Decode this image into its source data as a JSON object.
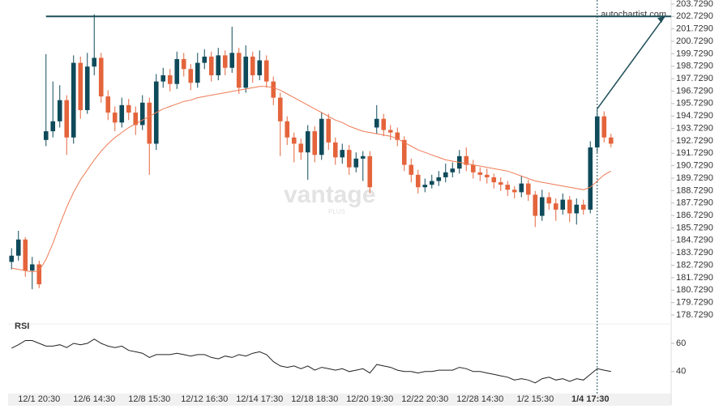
{
  "chart_data": {
    "type": "candlestick",
    "annotation": "autochartist.com",
    "watermark": "vantage",
    "watermark_sub": "PLUS",
    "indicator_label": "RSI",
    "up_color": "#0f4a5a",
    "down_color": "#e4643c",
    "ma_color": "#ef7a55",
    "rsi_color": "#222222",
    "resistance_color": "#1f4f5a",
    "resistance": 202.73,
    "categories": [
      null,
      null,
      null,
      null,
      "12/1 20:30",
      null,
      null,
      null,
      null,
      null,
      null,
      null,
      "12/6 14:30",
      null,
      null,
      null,
      null,
      null,
      null,
      null,
      "12/8 15:30",
      null,
      null,
      null,
      null,
      null,
      null,
      null,
      "12/12 16:30",
      null,
      null,
      null,
      null,
      null,
      null,
      null,
      "12/14 17:30",
      null,
      null,
      null,
      null,
      null,
      null,
      null,
      "12/18 18:30",
      null,
      null,
      null,
      null,
      null,
      null,
      null,
      "12/20 19:30",
      null,
      null,
      null,
      null,
      null,
      null,
      null,
      "12/22 20:30",
      null,
      null,
      null,
      null,
      null,
      null,
      null,
      "12/28 14:30",
      null,
      null,
      null,
      null,
      null,
      null,
      null,
      "1/2 15:30",
      null,
      null,
      null,
      null,
      null,
      null,
      null,
      "1/4 17:30",
      null,
      null,
      null
    ],
    "open": [
      183.0,
      183.5,
      184.8,
      182.3,
      182.8,
      192.8,
      193.5,
      194.3,
      196.0,
      193.0,
      199.0,
      195.2,
      198.7,
      199.4,
      196.3,
      195.0,
      194.2,
      195.6,
      195.0,
      194.0,
      195.8,
      192.5,
      197.5,
      198.0,
      197.3,
      199.3,
      198.5,
      197.4,
      199.0,
      199.5,
      198.0,
      199.6,
      198.6,
      199.8,
      197.0,
      199.5,
      198.0,
      199.2,
      197.5,
      196.2,
      194.3,
      193.0,
      192.5,
      191.8,
      193.5,
      191.6,
      194.5,
      192.6,
      191.4,
      192.0,
      190.6,
      191.3,
      191.5,
      193.8,
      194.5,
      193.6,
      193.4,
      192.8,
      190.8,
      190.0,
      189.0,
      189.2,
      189.5,
      189.8,
      190.2,
      190.5,
      191.5,
      190.8,
      190.2,
      190.0,
      189.8,
      189.4,
      189.2,
      188.8,
      188.6,
      189.3,
      188.4,
      186.7,
      188.2,
      187.7,
      187.2,
      188.0,
      186.9,
      187.6,
      187.2,
      192.2,
      194.7,
      193.0
    ],
    "high": [
      184.1,
      185.5,
      185.0,
      183.4,
      183.1,
      199.7,
      197.5,
      197.2,
      196.4,
      199.6,
      199.5,
      199.8,
      202.9,
      199.8,
      196.8,
      195.5,
      196.2,
      196.1,
      195.5,
      196.4,
      196.2,
      198.1,
      198.6,
      198.5,
      199.9,
      199.8,
      198.9,
      199.8,
      200.1,
      199.9,
      200.2,
      200.0,
      201.9,
      200.2,
      200.4,
      199.9,
      200.0,
      199.6,
      197.9,
      196.6,
      194.7,
      193.4,
      192.9,
      194.0,
      193.9,
      195.0,
      194.9,
      193.0,
      192.5,
      192.4,
      191.8,
      191.9,
      191.9,
      195.6,
      194.9,
      194.0,
      193.8,
      193.1,
      191.3,
      190.4,
      189.7,
      190.0,
      190.3,
      190.9,
      191.0,
      192.0,
      192.2,
      191.2,
      190.6,
      190.5,
      190.1,
      189.8,
      189.5,
      189.1,
      189.9,
      189.6,
      188.7,
      188.8,
      188.6,
      188.1,
      188.5,
      188.3,
      188.1,
      188.0,
      192.7,
      195.3,
      195.1,
      193.3
    ],
    "low": [
      182.4,
      183.1,
      181.8,
      180.8,
      180.9,
      192.3,
      193.0,
      193.8,
      191.6,
      192.5,
      194.5,
      194.9,
      198.0,
      195.8,
      194.4,
      193.5,
      193.8,
      194.4,
      193.2,
      193.6,
      190.0,
      192.0,
      197.0,
      196.7,
      196.9,
      197.9,
      196.8,
      197.0,
      198.5,
      197.5,
      197.6,
      198.0,
      198.2,
      196.5,
      196.6,
      197.4,
      197.6,
      197.0,
      195.6,
      191.5,
      192.4,
      191.0,
      191.2,
      189.6,
      191.0,
      191.2,
      192.0,
      190.8,
      190.9,
      190.0,
      190.2,
      189.5,
      188.5,
      193.3,
      193.1,
      192.8,
      192.3,
      190.3,
      189.4,
      188.5,
      188.6,
      188.9,
      189.1,
      189.4,
      189.8,
      190.1,
      190.3,
      189.7,
      189.5,
      189.3,
      188.9,
      188.7,
      188.3,
      188.1,
      188.2,
      187.9,
      185.8,
      186.3,
      187.2,
      186.3,
      186.8,
      186.2,
      186.0,
      186.8,
      186.9,
      191.8,
      192.6,
      192.2
    ],
    "close": [
      183.5,
      184.8,
      182.3,
      182.8,
      181.2,
      193.5,
      194.3,
      196.0,
      193.0,
      199.0,
      195.2,
      198.7,
      199.4,
      196.3,
      195.0,
      194.2,
      195.6,
      195.0,
      194.0,
      195.8,
      192.5,
      197.5,
      198.0,
      197.3,
      199.3,
      198.5,
      197.4,
      199.0,
      199.5,
      198.0,
      199.6,
      198.6,
      199.8,
      197.0,
      199.5,
      198.0,
      199.2,
      197.5,
      196.2,
      194.3,
      193.0,
      192.5,
      191.8,
      193.5,
      191.6,
      194.5,
      192.6,
      191.4,
      192.0,
      190.6,
      191.3,
      191.5,
      189.0,
      194.5,
      193.6,
      193.4,
      192.8,
      190.8,
      190.0,
      189.0,
      189.2,
      189.5,
      189.8,
      190.2,
      190.5,
      191.5,
      190.8,
      190.2,
      190.0,
      189.8,
      189.4,
      189.2,
      188.8,
      188.6,
      189.3,
      188.4,
      186.7,
      188.2,
      187.7,
      187.2,
      188.0,
      186.9,
      187.6,
      187.2,
      192.2,
      194.7,
      193.0,
      192.5
    ],
    "ma": [
      182.5,
      182.4,
      182.3,
      182.2,
      182.3,
      183.2,
      184.5,
      186.0,
      187.4,
      188.6,
      189.6,
      190.4,
      191.2,
      191.9,
      192.5,
      193.0,
      193.4,
      193.8,
      194.1,
      194.4,
      194.7,
      195.0,
      195.3,
      195.5,
      195.7,
      195.9,
      196.0,
      196.2,
      196.3,
      196.4,
      196.5,
      196.6,
      196.7,
      196.8,
      196.9,
      197.0,
      197.1,
      197.1,
      197.0,
      196.8,
      196.5,
      196.2,
      195.9,
      195.6,
      195.3,
      195.0,
      194.7,
      194.4,
      194.2,
      193.9,
      193.7,
      193.5,
      193.4,
      193.3,
      193.2,
      193.1,
      192.9,
      192.6,
      192.3,
      192.0,
      191.8,
      191.6,
      191.4,
      191.2,
      191.1,
      191.0,
      190.9,
      190.8,
      190.7,
      190.6,
      190.5,
      190.4,
      190.3,
      190.1,
      189.9,
      189.7,
      189.5,
      189.4,
      189.3,
      189.2,
      189.1,
      189.0,
      188.9,
      188.8,
      189.0,
      189.5,
      190.0,
      190.3
    ],
    "rsi": [
      56.6,
      59,
      62,
      62,
      60,
      58,
      58,
      59,
      57,
      60,
      59,
      60,
      63,
      60,
      58,
      57,
      58,
      55,
      54,
      53,
      50,
      52,
      52,
      52,
      53,
      52,
      51,
      52,
      52,
      50,
      49,
      51,
      50,
      52,
      51,
      53,
      54,
      52,
      47,
      44,
      43,
      44,
      42,
      44,
      41,
      43,
      42,
      41,
      42,
      40,
      41,
      42,
      39,
      45,
      44,
      43,
      41,
      40,
      40,
      39,
      40,
      40,
      41,
      41,
      41,
      43,
      42,
      40,
      40,
      39,
      38,
      37,
      36,
      34,
      35,
      34,
      32,
      35,
      36,
      34,
      35,
      33,
      35,
      34,
      38,
      42,
      41,
      40
    ],
    "ylim": [
      178.34,
      204.05
    ],
    "yticks": [
      {
        "value": 203.729,
        "label": "203.7290"
      },
      {
        "value": 202.729,
        "label": "202.7290"
      },
      {
        "value": 201.729,
        "label": "201.7290"
      },
      {
        "value": 200.729,
        "label": "200.7290"
      },
      {
        "value": 199.729,
        "label": "199.7290"
      },
      {
        "value": 198.729,
        "label": "198.7290"
      },
      {
        "value": 197.729,
        "label": "197.7290"
      },
      {
        "value": 196.729,
        "label": "196.7290"
      },
      {
        "value": 195.729,
        "label": "195.7290"
      },
      {
        "value": 194.729,
        "label": "194.7290"
      },
      {
        "value": 193.729,
        "label": "193.7290"
      },
      {
        "value": 192.729,
        "label": "192.7290"
      },
      {
        "value": 191.729,
        "label": "191.7290"
      },
      {
        "value": 190.729,
        "label": "190.7290"
      },
      {
        "value": 189.729,
        "label": "189.7290"
      },
      {
        "value": 188.729,
        "label": "188.7290"
      },
      {
        "value": 187.729,
        "label": "187.7290"
      },
      {
        "value": 186.729,
        "label": "186.7290"
      },
      {
        "value": 185.729,
        "label": "185.7290"
      },
      {
        "value": 184.729,
        "label": "184.7290"
      },
      {
        "value": 183.729,
        "label": "183.7290"
      },
      {
        "value": 182.729,
        "label": "182.7290"
      },
      {
        "value": 181.729,
        "label": "181.7290"
      },
      {
        "value": 180.729,
        "label": "180.7290"
      },
      {
        "value": 179.729,
        "label": "179.7290"
      },
      {
        "value": 178.729,
        "label": "178.7290"
      }
    ],
    "y2lim": [
      25,
      68
    ],
    "y2ticks": [
      60,
      40
    ]
  }
}
